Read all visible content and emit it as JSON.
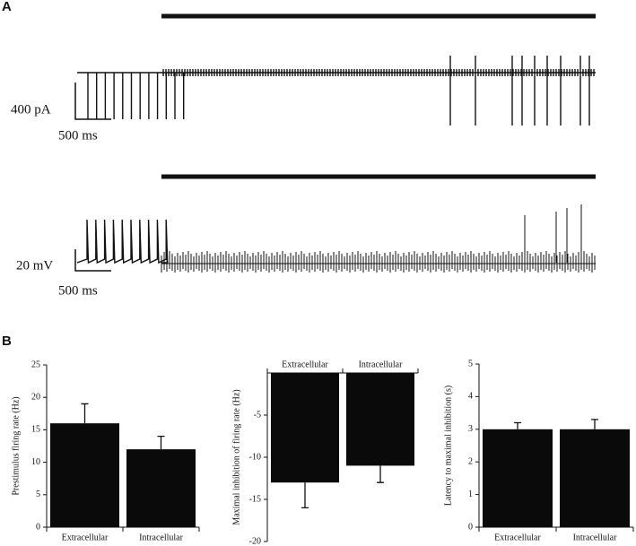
{
  "panel_a": {
    "label": "A",
    "scale_bars": [
      {
        "y_label": "400 pA",
        "x_label": "500 ms"
      },
      {
        "y_label": "20 mV",
        "x_label": "500 ms"
      }
    ]
  },
  "panel_b": {
    "label": "B"
  },
  "chart_data": [
    {
      "type": "bar",
      "y_label": "Prestimulus firing rate (Hz)",
      "categories": [
        "Extracellular",
        "Intracellular"
      ],
      "values": [
        16,
        12
      ],
      "errors": [
        3,
        2
      ],
      "color": "#0a0a0a",
      "ylim": [
        0,
        25
      ],
      "yticks": [
        0,
        5,
        10,
        15,
        20,
        25
      ]
    },
    {
      "type": "bar",
      "y_label": "Maximal inhibition of firing rate (Hz)",
      "categories": [
        "Extracellular",
        "Intracellular"
      ],
      "values": [
        -13,
        -11
      ],
      "errors": [
        3,
        2
      ],
      "color": "#0a0a0a",
      "ylim": [
        -20,
        0
      ],
      "yticks": [
        -5,
        -10,
        -15,
        -20
      ]
    },
    {
      "type": "bar",
      "y_label": "Latency to maximal inhibition (s)",
      "categories": [
        "Extracellular",
        "Intracellular"
      ],
      "values": [
        3,
        3
      ],
      "errors": [
        0.2,
        0.3
      ],
      "color": "#0a0a0a",
      "ylim": [
        0,
        5
      ],
      "yticks": [
        0,
        1,
        2,
        3,
        4,
        5
      ]
    }
  ]
}
